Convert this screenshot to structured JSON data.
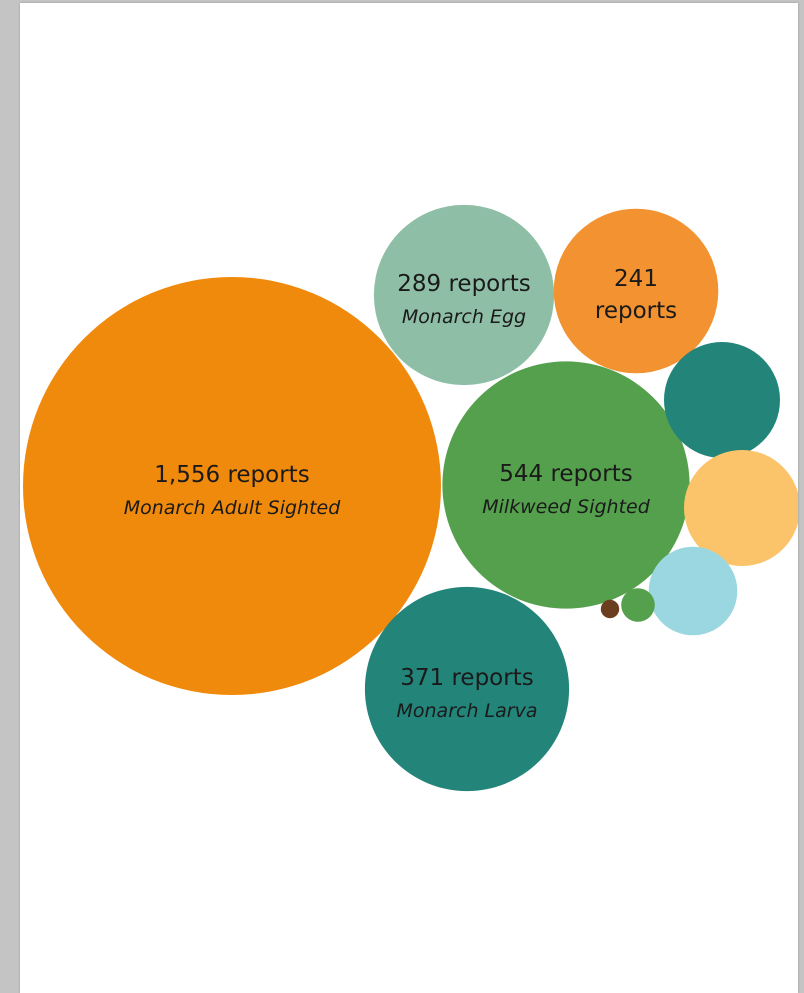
{
  "chart_data": {
    "type": "bubble",
    "title": "",
    "legend": "none",
    "grid": false,
    "series": [
      {
        "value": 1556,
        "value_label": "1,556 reports",
        "category": "Monarch Adult Sighted",
        "color": "#f08a0c"
      },
      {
        "value": 544,
        "value_label": "544 reports",
        "category": "Milkweed Sighted",
        "color": "#54a04c"
      },
      {
        "value": 371,
        "value_label": "371 reports",
        "category": "Monarch Larva",
        "color": "#23847a"
      },
      {
        "value": 289,
        "value_label": "289 reports",
        "category": "Monarch Egg",
        "color": "#8ebfa6"
      },
      {
        "value": 241,
        "value_label": "241 reports",
        "category": "",
        "color": "#f29230",
        "label_lines": [
          "241",
          "reports"
        ]
      },
      {
        "value": 120,
        "value_label": "",
        "category": "",
        "color": "#23847a"
      },
      {
        "value": 120,
        "value_label": "",
        "category": "",
        "color": "#fbc46a"
      },
      {
        "value": 70,
        "value_label": "",
        "category": "",
        "color": "#9bd7e1"
      },
      {
        "value": 10,
        "value_label": "",
        "category": "",
        "color": "#54a04c"
      },
      {
        "value": 3,
        "value_label": "",
        "category": "",
        "color": "#6b3e20"
      }
    ]
  }
}
